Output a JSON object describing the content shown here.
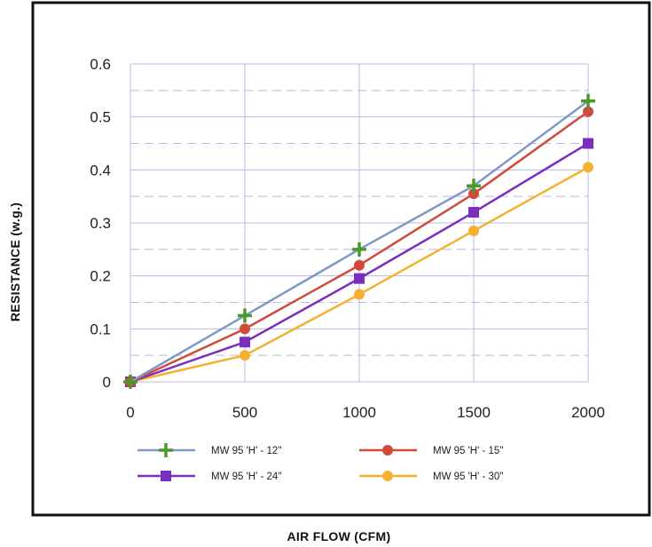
{
  "chart_data": {
    "type": "line",
    "title": "",
    "xlabel": "AIR FLOW (CFM)",
    "ylabel": "RESISTANCE (w.g.)",
    "x": [
      0,
      500,
      1000,
      1500,
      2000
    ],
    "x_ticks": [
      "0",
      "500",
      "1000",
      "1500",
      "2000"
    ],
    "y_ticks": [
      "0",
      "0.1",
      "0.2",
      "0.3",
      "0.4",
      "0.5",
      "0.6"
    ],
    "xlim": [
      0,
      2000
    ],
    "ylim": [
      0,
      0.6
    ],
    "grid": true,
    "legend_position": "bottom",
    "series": [
      {
        "name": "MW 95 'H' - 12\"",
        "values": [
          0,
          0.125,
          0.25,
          0.37,
          0.53
        ],
        "color": "#7f98c8",
        "marker": "plus",
        "marker_color": "#4a9a2a"
      },
      {
        "name": "MW 95 'H' - 15\"",
        "values": [
          0,
          0.1,
          0.22,
          0.355,
          0.51
        ],
        "color": "#d04a3a",
        "marker": "circle",
        "marker_color": "#d04a3a"
      },
      {
        "name": "MW 95 'H' - 24\"",
        "values": [
          0,
          0.075,
          0.195,
          0.32,
          0.45
        ],
        "color": "#7a2fbf",
        "marker": "square",
        "marker_color": "#7a2fbf"
      },
      {
        "name": "MW 95 'H' - 30\"",
        "values": [
          0,
          0.05,
          0.165,
          0.285,
          0.405
        ],
        "color": "#f5b030",
        "marker": "circle",
        "marker_color": "#f5b030"
      }
    ]
  }
}
